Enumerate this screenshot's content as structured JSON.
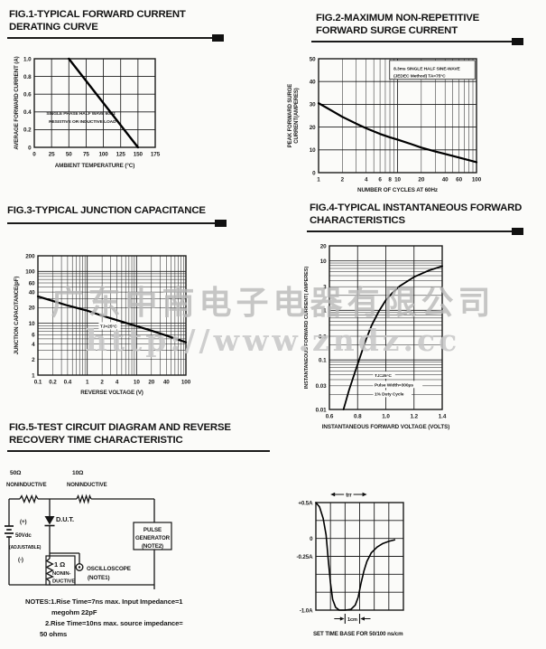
{
  "watermark": {
    "line1": "广东中南电子电器有限公司",
    "line2": "http://www.zndz.cc"
  },
  "figures": {
    "fig1": {
      "title1": "FIG.1-TYPICAL FORWARD CURRENT",
      "title2": "DERATING CURVE"
    },
    "fig2": {
      "title1": "FIG.2-MAXIMUM NON-REPETITIVE",
      "title2": "FORWARD SURGE CURRENT"
    },
    "fig3": {
      "title1": "FIG.3-TYPICAL JUNCTION CAPACITANCE",
      "title2": ""
    },
    "fig4": {
      "title1": "FIG.4-TYPICAL INSTANTANEOUS FORWARD",
      "title2": "CHARACTERISTICS"
    },
    "fig5": {
      "title1": "FIG.5-TEST CIRCUIT DIAGRAM AND REVERSE",
      "title2": "RECOVERY TIME CHARACTERISTIC"
    }
  },
  "circuit": {
    "r1_value": "50Ω",
    "r1_type": "NONINDUCTIVE",
    "r2_value": "10Ω",
    "r2_type": "NONINDUCTIVE",
    "src_plus": "(+)",
    "src_value": "50Vdc",
    "src_adj": "(ADJUSTABLE)",
    "src_minus": "(-)",
    "dut_label": "D.U.T.",
    "r3_value": "1 Ω",
    "r3_type1": "NONIN-",
    "r3_type2": "DUCTIVE",
    "scope_line1": "OSCILLOSCOPE",
    "scope_line2": "(NOTE1)",
    "pulse_line1": "PULSE",
    "pulse_line2": "GENERATOR",
    "pulse_line3": "(NOTE2)"
  },
  "notes": [
    "NOTES:1.Rise Time=7ns max. Input Impedance=1",
    "megohm 22pF",
    "2.Rise Time=10ns max. source impedance=",
    "50 ohms"
  ],
  "waveform": {
    "trr_label": "trr",
    "cm_label": "1cm",
    "caption": "SET TIME BASE FOR 50/100 ns/cm"
  },
  "chart_data": [
    {
      "id": "chart-fig1",
      "type": "line",
      "title": "FIG.1-TYPICAL FORWARD CURRENT DERATING CURVE",
      "xlabel": "AMBIENT TEMPERATURE (°C)",
      "ylabel": "AVERAGE FORWARD CURRENT (A)",
      "xscale": "linear",
      "yscale": "linear",
      "xlim": [
        0,
        175
      ],
      "ylim": [
        0,
        1.0
      ],
      "x_ticks": [
        0,
        25,
        50,
        75,
        100,
        125,
        150,
        175
      ],
      "x_tick_labels": [
        "0",
        "25",
        "50",
        "75",
        "100",
        "125",
        "150",
        "175"
      ],
      "y_ticks": [
        0,
        0.2,
        0.4,
        0.6,
        0.8,
        1.0
      ],
      "y_tick_labels": [
        "0",
        "0.2",
        "0.4",
        "0.6",
        "0.8",
        "1.0"
      ],
      "series": [
        {
          "name": "derating-curve",
          "points": [
            [
              50,
              1.0
            ],
            [
              150,
              0
            ]
          ]
        }
      ],
      "annotations": [
        {
          "text": "SINGLE PHASE HALF WAVE 60Hz",
          "fx": 0.1,
          "fy": 0.585
        },
        {
          "text": "RESISTIVE OR INDUCTIVE LOAD",
          "fx": 0.12,
          "fy": 0.675
        }
      ]
    },
    {
      "id": "chart-fig2",
      "type": "line",
      "title": "FIG.2-MAXIMUM NON-REPETITIVE FORWARD SURGE CURRENT",
      "xlabel": "NUMBER OF CYCLES AT 60Hz",
      "ylabel": [
        "PEAK FORWARD SURGE",
        "CURRENT(AMPERES)"
      ],
      "xscale": "log",
      "yscale": "linear",
      "xlim": [
        1,
        100
      ],
      "ylim": [
        0,
        50
      ],
      "x_ticks": [
        1,
        2,
        4,
        6,
        8,
        10,
        20,
        40,
        60,
        100
      ],
      "x_tick_labels": [
        "1",
        "2",
        "4",
        "6",
        "8",
        "10",
        "20",
        "40",
        "60",
        "100"
      ],
      "y_ticks": [
        0,
        10,
        20,
        30,
        40,
        50
      ],
      "y_tick_labels": [
        "0",
        "10",
        "20",
        "30",
        "40",
        "50"
      ],
      "series": [
        {
          "name": "surge-current",
          "points": [
            [
              1,
              30.5
            ],
            [
              1.5,
              27
            ],
            [
              2,
              24.5
            ],
            [
              3,
              21.5
            ],
            [
              4,
              19.5
            ],
            [
              6,
              17
            ],
            [
              8,
              15.5
            ],
            [
              10,
              14.5
            ],
            [
              15,
              12.5
            ],
            [
              20,
              11
            ],
            [
              30,
              9.3
            ],
            [
              40,
              8.2
            ],
            [
              60,
              6.6
            ],
            [
              80,
              5.5
            ],
            [
              100,
              4.6
            ]
          ]
        }
      ],
      "ann_box": {
        "fx": 0.45,
        "fy": 0.015,
        "fw": 0.54,
        "fh": 0.165,
        "border": true
      },
      "annotations": [
        {
          "text": "8.3ms SINGLE HALF SINE-WAVE",
          "fx": 0.475,
          "fy": 0.062
        },
        {
          "text": "(JEDEC Method) TA=75°C",
          "fx": 0.475,
          "fy": 0.125
        }
      ]
    },
    {
      "id": "chart-fig3",
      "type": "line",
      "title": "FIG.3-TYPICAL JUNCTION CAPACITANCE",
      "xlabel": "REVERSE VOLTAGE (V)",
      "ylabel": "JUNCTION CAPACITANCE(pF)",
      "xscale": "log",
      "yscale": "log",
      "xlim": [
        0.1,
        100
      ],
      "ylim": [
        1,
        200
      ],
      "x_ticks": [
        0.1,
        0.2,
        0.4,
        1,
        2,
        4,
        10,
        20,
        40,
        100
      ],
      "x_tick_labels": [
        "0.1",
        "0.2",
        "0.4",
        "1",
        "2",
        "4",
        "10",
        "20",
        "40",
        "100"
      ],
      "y_ticks": [
        1,
        2,
        4,
        6,
        10,
        20,
        40,
        60,
        100,
        200
      ],
      "y_tick_labels": [
        "1",
        "2",
        "4",
        "6",
        "10",
        "20",
        "40",
        "60",
        "100",
        "200"
      ],
      "series": [
        {
          "name": "junction-capacitance",
          "points": [
            [
              0.1,
              33
            ],
            [
              0.2,
              27
            ],
            [
              0.4,
              22
            ],
            [
              1,
              17.5
            ],
            [
              2,
              14
            ],
            [
              4,
              11.5
            ],
            [
              10,
              8.8
            ],
            [
              20,
              7.2
            ],
            [
              40,
              5.8
            ],
            [
              100,
              4.3
            ]
          ]
        }
      ],
      "annotations": [
        {
          "text": "TJ=25°C",
          "fx": 0.42,
          "fy": 0.565,
          "bg": true
        }
      ]
    },
    {
      "id": "chart-fig4",
      "type": "line",
      "title": "FIG.4-TYPICAL INSTANTANEOUS FORWARD CHARACTERISTICS",
      "xlabel": "INSTANTANEOUS FORWARD VOLTAGE (VOLTS)",
      "ylabel": "INSTANTANEOUS FORWARD CURRENT( AMPERES)",
      "xscale": "linear",
      "yscale": "log",
      "xlim": [
        0.6,
        1.4
      ],
      "ylim": [
        0.01,
        20
      ],
      "x_ticks": [
        0.6,
        0.8,
        1.0,
        1.2,
        1.4
      ],
      "x_tick_labels": [
        "0.6",
        "0.8",
        "1.0",
        "1.2",
        "1.4"
      ],
      "y_ticks": [
        0.01,
        0.03,
        0.1,
        0.3,
        1,
        3,
        10,
        20
      ],
      "y_tick_labels": [
        "0.01",
        "0.03",
        "0.1",
        "0.3",
        "1",
        "3",
        "10",
        "20"
      ],
      "series": [
        {
          "name": "vf-if",
          "points": [
            [
              0.7,
              0.01
            ],
            [
              0.74,
              0.025
            ],
            [
              0.78,
              0.055
            ],
            [
              0.82,
              0.12
            ],
            [
              0.86,
              0.26
            ],
            [
              0.9,
              0.5
            ],
            [
              0.95,
              0.95
            ],
            [
              1.0,
              1.6
            ],
            [
              1.05,
              2.3
            ],
            [
              1.1,
              3.1
            ],
            [
              1.2,
              4.7
            ],
            [
              1.3,
              6.3
            ],
            [
              1.4,
              7.8
            ]
          ]
        }
      ],
      "annotations": [
        {
          "text": "TJ=25°C",
          "fx": 0.4,
          "fy": 0.775,
          "bg": true
        },
        {
          "text": "Pulse Width=300μs",
          "fx": 0.4,
          "fy": 0.832,
          "bg": true
        },
        {
          "text": "1% Duty Cycle",
          "fx": 0.4,
          "fy": 0.888,
          "bg": true
        }
      ]
    },
    {
      "id": "chart-wave",
      "type": "line",
      "title": "REVERSE RECOVERY TIME CHARACTERISTIC",
      "xlabel": "",
      "ylabel": "",
      "xscale": "linear",
      "yscale": "linear",
      "xlim": [
        0,
        6
      ],
      "ylim": [
        -1.0,
        0.5
      ],
      "x_ticks": [
        0,
        1,
        2,
        3,
        4,
        5,
        6
      ],
      "x_tick_labels": [],
      "y_ticks": [
        0.5,
        0,
        -0.25,
        -1.0
      ],
      "y_tick_labels": [
        "+0.5A",
        "0",
        "-0.25A",
        "-1.0A"
      ],
      "y_grid": [
        -1.0,
        -0.75,
        -0.5,
        -0.25,
        0,
        0.25,
        0.5
      ],
      "series": [
        {
          "name": "recovery-waveform",
          "points": [
            [
              0,
              0.5
            ],
            [
              0.25,
              0.44
            ],
            [
              0.5,
              0.28
            ],
            [
              0.7,
              0.05
            ],
            [
              0.85,
              -0.3
            ],
            [
              1.0,
              -0.62
            ],
            [
              1.15,
              -0.85
            ],
            [
              1.35,
              -0.96
            ],
            [
              1.6,
              -1.0
            ],
            [
              2.0,
              -1.0
            ],
            [
              2.4,
              -0.99
            ],
            [
              2.7,
              -0.93
            ],
            [
              2.9,
              -0.82
            ],
            [
              3.1,
              -0.62
            ],
            [
              3.3,
              -0.45
            ],
            [
              3.5,
              -0.32
            ],
            [
              3.8,
              -0.2
            ],
            [
              4.2,
              -0.12
            ],
            [
              4.6,
              -0.07
            ],
            [
              5.0,
              -0.04
            ],
            [
              5.4,
              -0.02
            ]
          ]
        }
      ]
    }
  ]
}
